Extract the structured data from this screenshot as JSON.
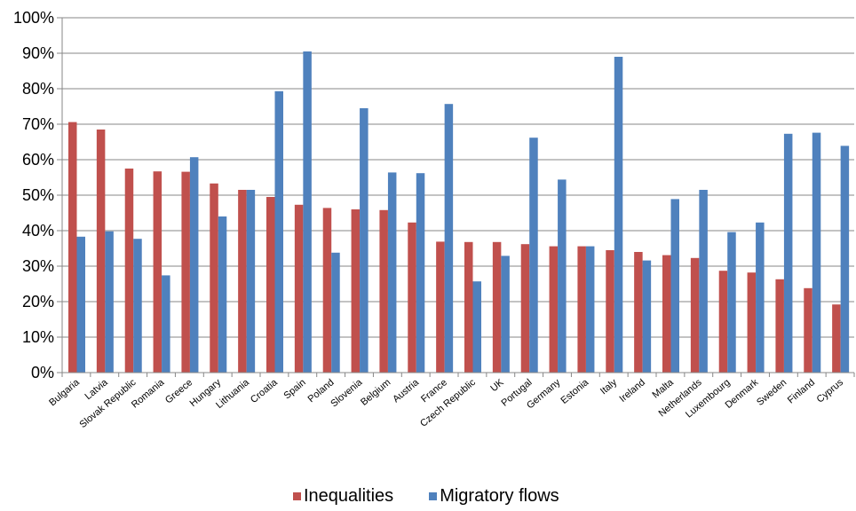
{
  "chart_data": {
    "type": "bar",
    "title": "",
    "xlabel": "",
    "ylabel": "",
    "ylim": [
      0,
      100
    ],
    "y_ticks": [
      "0%",
      "10%",
      "20%",
      "30%",
      "40%",
      "50%",
      "60%",
      "70%",
      "80%",
      "90%",
      "100%"
    ],
    "gridlines": true,
    "legend_position": "bottom",
    "categories": [
      "Bulgaria",
      "Latvia",
      "Slovak Republic",
      "Romania",
      "Greece",
      "Hungary",
      "Lithuania",
      "Croatia",
      "Spain",
      "Poland",
      "Slovenia",
      "Belgium",
      "Austria",
      "France",
      "Czech Republic",
      "UK",
      "Portugal",
      "Germany",
      "Estonia",
      "Italy",
      "Ireland",
      "Malta",
      "Netherlands",
      "Luxembourg",
      "Denmark",
      "Sweden",
      "Finland",
      "Cyprus"
    ],
    "series": [
      {
        "name": "Inequalities",
        "color": "#c0504d",
        "values": [
          70.6,
          68.5,
          57.5,
          56.7,
          56.6,
          53.3,
          51.5,
          49.5,
          47.3,
          46.4,
          46.0,
          45.8,
          42.3,
          36.9,
          36.8,
          36.8,
          36.2,
          35.6,
          35.6,
          34.5,
          34.0,
          33.1,
          32.3,
          28.7,
          28.2,
          26.3,
          23.8,
          19.2
        ]
      },
      {
        "name": "Migratory flows",
        "color": "#4f81bd",
        "values": [
          38.3,
          39.8,
          37.7,
          27.4,
          60.7,
          44.0,
          51.5,
          79.3,
          90.5,
          33.8,
          74.5,
          56.4,
          56.2,
          75.7,
          25.7,
          32.9,
          66.2,
          54.4,
          35.6,
          89.0,
          31.6,
          48.9,
          51.5,
          39.6,
          42.3,
          67.3,
          67.6,
          63.9
        ]
      }
    ]
  }
}
